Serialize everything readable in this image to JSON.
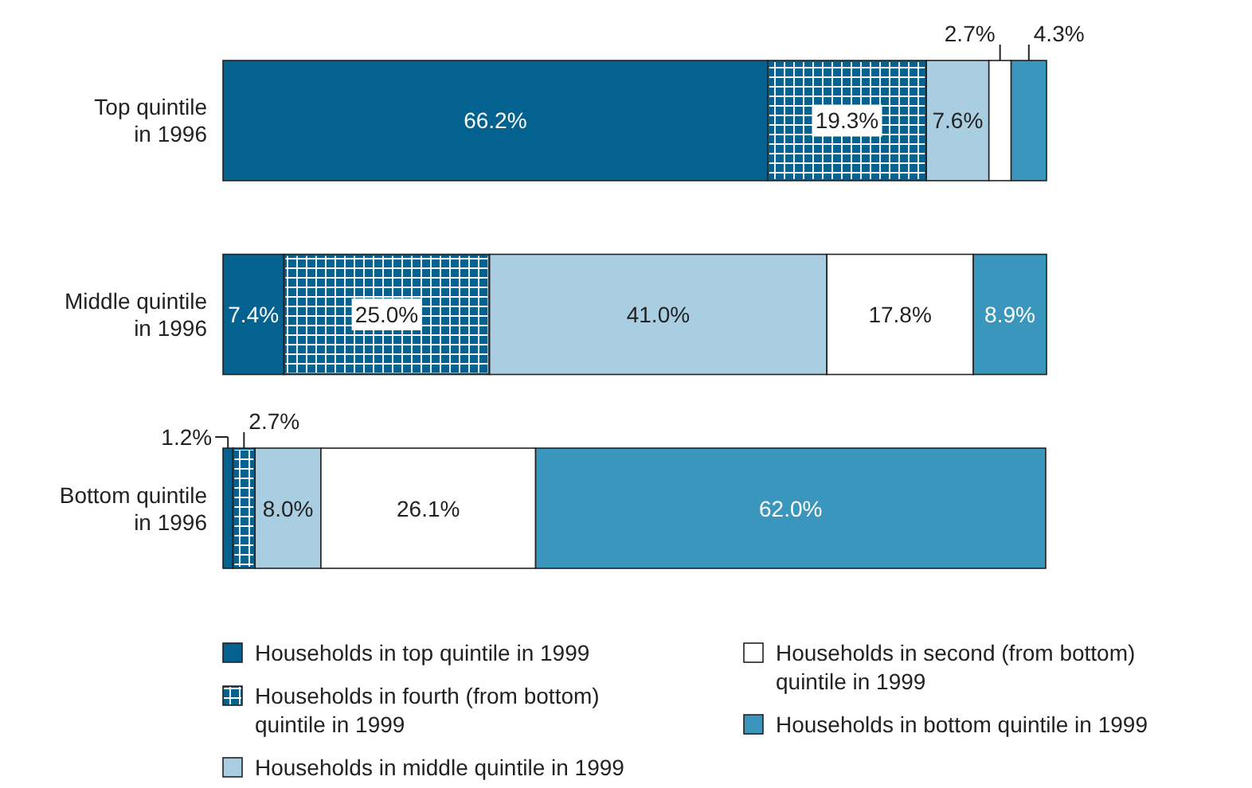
{
  "chart_data": {
    "type": "bar",
    "orientation": "horizontal",
    "stacked": true,
    "legend": "bottom",
    "categories": [
      "Top quintile in 1996",
      "Middle quintile in 1996",
      "Bottom quintile in 1996"
    ],
    "series": [
      {
        "name": "Households in top quintile in 1999",
        "color": "#03628f",
        "values": [
          66.2,
          7.4,
          1.2
        ],
        "value_labels": [
          "66.2%",
          "7.4%",
          "1.2%"
        ]
      },
      {
        "name": "Households in fourth (from bottom) quintile in 1999",
        "color": "#03628f",
        "values": [
          19.3,
          25.0,
          2.7
        ],
        "value_labels": [
          "19.3%",
          "25.0%",
          "2.7%"
        ]
      },
      {
        "name": "Households in middle quintile in 1999",
        "color": "#a9cde1",
        "values": [
          7.6,
          41.0,
          8.0
        ],
        "value_labels": [
          "7.6%",
          "41.0%",
          "8.0%"
        ]
      },
      {
        "name": "Households in second (from bottom) quintile in 1999",
        "color": "#ffffff",
        "values": [
          2.7,
          17.8,
          26.1
        ],
        "value_labels": [
          "2.7%",
          "17.8%",
          "26.1%"
        ]
      },
      {
        "name": "Households in bottom quintile in 1999",
        "color": "#3a96bd",
        "values": [
          4.3,
          8.9,
          62.0
        ],
        "value_labels": [
          "4.3%",
          "8.9%",
          "62.0%"
        ]
      }
    ]
  }
}
